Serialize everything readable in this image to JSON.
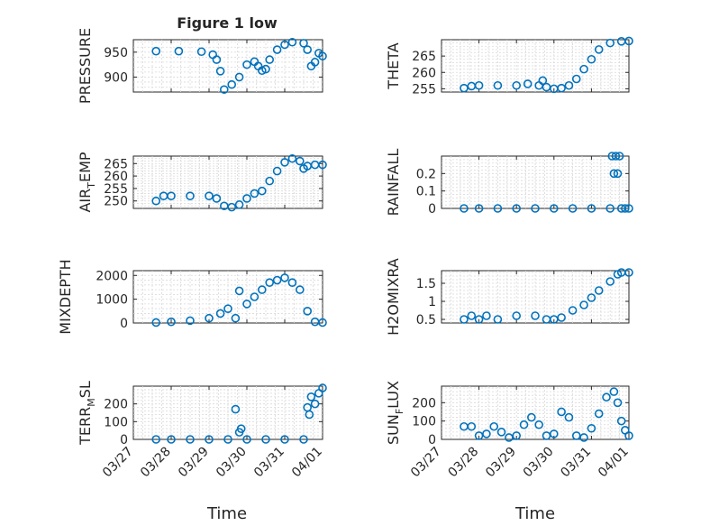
{
  "title": "Figure 1 low",
  "x_axis_label": "Time",
  "x_ticks": [
    "03/27",
    "03/28",
    "03/29",
    "03/30",
    "03/31",
    "04/01"
  ],
  "marker_color": "#0072BD",
  "chart_data": [
    {
      "type": "scatter",
      "id": "pressure",
      "ylabel_main": "PRESSURE",
      "ylabel_sub": "",
      "ylabel_rest": "",
      "ylim": [
        870,
        975
      ],
      "yticks": [
        900,
        950
      ],
      "ytick_labels": [
        "900",
        "950"
      ],
      "x": [
        0.6,
        1.2,
        1.8,
        2.1,
        2.2,
        2.3,
        2.4,
        2.6,
        2.8,
        3.0,
        3.2,
        3.3,
        3.4,
        3.5,
        3.6,
        3.8,
        4.0,
        4.2,
        4.5,
        4.6,
        4.7,
        4.8,
        4.9,
        5.0
      ],
      "y": [
        952,
        952,
        951,
        945,
        935,
        912,
        875,
        885,
        900,
        925,
        931,
        922,
        913,
        916,
        935,
        955,
        965,
        970,
        968,
        955,
        922,
        930,
        948,
        942
      ],
      "grid": true
    },
    {
      "type": "scatter",
      "id": "theta",
      "ylabel_main": "THETA",
      "ylabel_sub": "",
      "ylabel_rest": "",
      "ylim": [
        254,
        270
      ],
      "yticks": [
        255,
        260,
        265
      ],
      "ytick_labels": [
        "255",
        "260",
        "265"
      ],
      "x": [
        0.6,
        0.8,
        1.0,
        1.5,
        2.0,
        2.3,
        2.6,
        2.7,
        2.8,
        3.0,
        3.2,
        3.4,
        3.6,
        3.8,
        4.0,
        4.2,
        4.5,
        4.8,
        5.0
      ],
      "y": [
        255.2,
        255.8,
        256,
        256,
        256,
        256.5,
        256,
        257.5,
        255.5,
        255,
        255.2,
        256,
        258,
        261,
        264,
        267,
        269,
        269.5,
        269.6
      ],
      "grid": true
    },
    {
      "type": "scatter",
      "id": "air_temp",
      "ylabel_main": "AIR",
      "ylabel_sub": "T",
      "ylabel_rest": "EMP",
      "ylim": [
        247,
        268
      ],
      "yticks": [
        250,
        255,
        260,
        265
      ],
      "ytick_labels": [
        "250",
        "255",
        "260",
        "265"
      ],
      "x": [
        0.6,
        0.8,
        1.0,
        1.5,
        2.0,
        2.2,
        2.4,
        2.6,
        2.8,
        3.0,
        3.2,
        3.4,
        3.6,
        3.8,
        4.0,
        4.2,
        4.4,
        4.5,
        4.6,
        4.8,
        5.0
      ],
      "y": [
        250,
        252,
        252,
        252,
        252,
        251,
        248,
        247.5,
        248.5,
        251,
        253,
        254,
        258,
        262,
        265.5,
        267,
        266,
        263,
        264,
        264.5,
        264.5
      ],
      "grid": true
    },
    {
      "type": "scatter",
      "id": "rainfall",
      "ylabel_main": "RAINFALL",
      "ylabel_sub": "",
      "ylabel_rest": "",
      "ylim": [
        0,
        0.3
      ],
      "yticks": [
        0,
        0.1,
        0.2
      ],
      "ytick_labels": [
        "0",
        "0.1",
        "0.2"
      ],
      "x": [
        0.6,
        1.0,
        1.5,
        2.0,
        2.5,
        3.0,
        3.5,
        4.0,
        4.5,
        4.55,
        4.6,
        4.65,
        4.7,
        4.75,
        4.8,
        4.9,
        5.0
      ],
      "y": [
        0,
        0,
        0,
        0,
        0,
        0,
        0,
        0,
        0,
        0.3,
        0.2,
        0.3,
        0.2,
        0.3,
        0,
        0,
        0
      ],
      "grid": true
    },
    {
      "type": "scatter",
      "id": "mixdepth",
      "ylabel_main": "MIXDEPTH",
      "ylabel_sub": "",
      "ylabel_rest": "",
      "ylim": [
        0,
        2200
      ],
      "yticks": [
        0,
        1000,
        2000
      ],
      "ytick_labels": [
        "0",
        "1000",
        "2000"
      ],
      "x": [
        0.6,
        1.0,
        1.5,
        2.0,
        2.3,
        2.5,
        2.7,
        2.8,
        3.0,
        3.2,
        3.4,
        3.6,
        3.8,
        4.0,
        4.2,
        4.4,
        4.6,
        4.8,
        5.0
      ],
      "y": [
        20,
        50,
        100,
        200,
        400,
        600,
        200,
        1350,
        800,
        1100,
        1400,
        1700,
        1800,
        1900,
        1700,
        1400,
        500,
        50,
        20
      ],
      "grid": true
    },
    {
      "type": "scatter",
      "id": "h2omixra",
      "ylabel_main": "H2OMIXRA",
      "ylabel_sub": "",
      "ylabel_rest": "",
      "ylim": [
        0.4,
        1.85
      ],
      "yticks": [
        0.5,
        1,
        1.5
      ],
      "ytick_labels": [
        "0.5",
        "1",
        "1.5"
      ],
      "x": [
        0.6,
        0.8,
        1.0,
        1.2,
        1.5,
        2.0,
        2.5,
        2.8,
        3.0,
        3.2,
        3.5,
        3.8,
        4.0,
        4.2,
        4.5,
        4.7,
        4.8,
        5.0
      ],
      "y": [
        0.5,
        0.6,
        0.5,
        0.6,
        0.5,
        0.6,
        0.6,
        0.5,
        0.5,
        0.55,
        0.75,
        0.9,
        1.1,
        1.3,
        1.55,
        1.75,
        1.8,
        1.8
      ],
      "grid": true
    },
    {
      "type": "scatter",
      "id": "terr_msl",
      "ylabel_main": "TERR",
      "ylabel_sub": "M",
      "ylabel_rest": "SL",
      "ylim": [
        0,
        300
      ],
      "yticks": [
        0,
        100,
        200
      ],
      "ytick_labels": [
        "0",
        "100",
        "200"
      ],
      "x": [
        0.6,
        1.0,
        1.5,
        2.0,
        2.5,
        2.7,
        2.8,
        2.85,
        3.0,
        3.5,
        4.0,
        4.5,
        4.6,
        4.65,
        4.7,
        4.8,
        4.9,
        5.0
      ],
      "y": [
        0,
        0,
        0,
        0,
        0,
        170,
        40,
        60,
        0,
        0,
        0,
        0,
        180,
        140,
        240,
        200,
        260,
        290
      ],
      "grid": true
    },
    {
      "type": "scatter",
      "id": "sun_flux",
      "ylabel_main": "SUN",
      "ylabel_sub": "F",
      "ylabel_rest": "LUX",
      "ylim": [
        0,
        290
      ],
      "yticks": [
        0,
        100,
        200
      ],
      "ytick_labels": [
        "0",
        "100",
        "200"
      ],
      "x": [
        0.6,
        0.8,
        1.0,
        1.2,
        1.4,
        1.6,
        1.8,
        2.0,
        2.2,
        2.4,
        2.6,
        2.8,
        3.0,
        3.2,
        3.4,
        3.6,
        3.8,
        4.0,
        4.2,
        4.4,
        4.6,
        4.7,
        4.8,
        4.9,
        5.0
      ],
      "y": [
        70,
        70,
        20,
        30,
        70,
        40,
        10,
        20,
        80,
        120,
        80,
        20,
        30,
        150,
        120,
        20,
        10,
        60,
        140,
        230,
        260,
        200,
        100,
        50,
        20
      ],
      "grid": true
    }
  ]
}
